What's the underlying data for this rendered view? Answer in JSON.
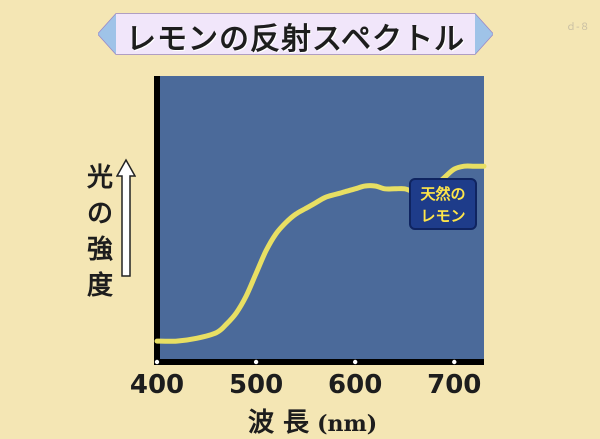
{
  "chart_data": {
    "type": "line",
    "title": "レモンの反射スペクトル",
    "ylabel_chars": [
      "光",
      "の",
      "強",
      "度"
    ],
    "xlabel": "波 長",
    "xunit": "(nm)",
    "xlim": [
      400,
      730
    ],
    "ylim": [
      0,
      1
    ],
    "x_ticks": [
      400,
      500,
      600,
      700
    ],
    "series": [
      {
        "name_lines": [
          "天然の",
          "レモン"
        ],
        "color": "#e8df63",
        "x": [
          400,
          420,
          440,
          460,
          470,
          480,
          490,
          500,
          510,
          520,
          530,
          540,
          550,
          560,
          570,
          580,
          590,
          600,
          610,
          620,
          630,
          640,
          650,
          660,
          670,
          680,
          690,
          700,
          710,
          720,
          730
        ],
        "y": [
          0.06,
          0.06,
          0.07,
          0.09,
          0.12,
          0.16,
          0.22,
          0.3,
          0.38,
          0.44,
          0.48,
          0.51,
          0.53,
          0.55,
          0.57,
          0.58,
          0.59,
          0.6,
          0.61,
          0.61,
          0.6,
          0.6,
          0.6,
          0.59,
          0.6,
          0.61,
          0.64,
          0.67,
          0.68,
          0.68,
          0.68
        ]
      }
    ],
    "grid": false,
    "plot_color": "#4b6a9a",
    "scan_mark": "ｄ-８"
  }
}
